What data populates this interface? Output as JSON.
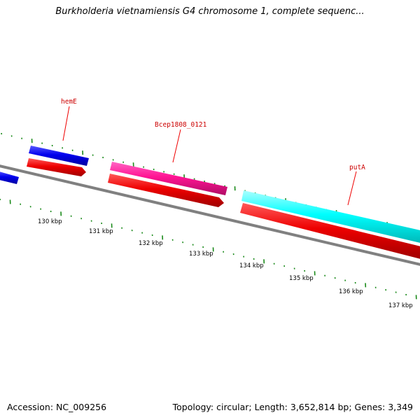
{
  "title": "Burkholderia vietnamiensis G4 chromosome 1, complete sequenc...",
  "footer": {
    "accession": "Accession: NC_009256",
    "summary": "Topology: circular; Length: 3,652,814 bp; Genes: 3,349"
  },
  "scale_labels": [
    "130 kbp",
    "131 kbp",
    "132 kbp",
    "133 kbp",
    "134 kbp",
    "135 kbp",
    "136 kbp",
    "137 kbp"
  ],
  "gene_labels": {
    "hemE": "hemE",
    "bcep": "Bcep1808_0121",
    "putA": "putA"
  },
  "colors": {
    "backbone": "#808080",
    "tick": "#1a8a1a",
    "forward_blue": "#0000ee",
    "forward_magenta": "#ff1493",
    "forward_cyan": "#00ffff",
    "reverse_red": "#ee0000",
    "label_red": "#cc0000"
  }
}
